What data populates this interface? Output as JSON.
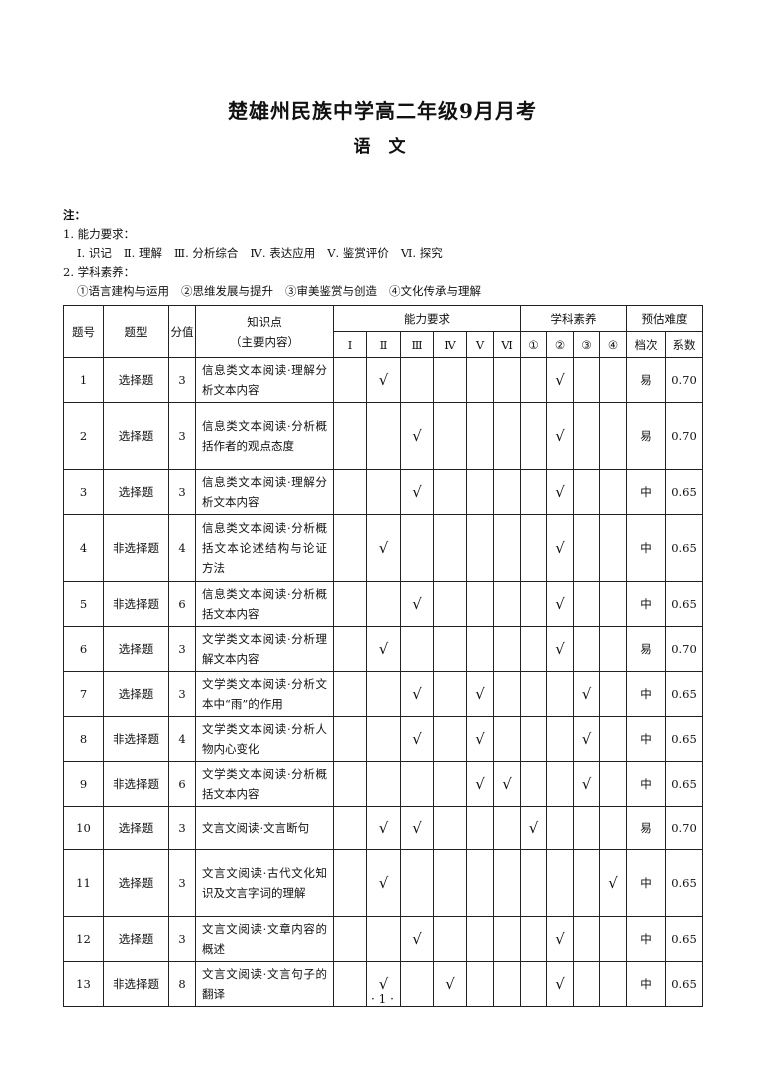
{
  "title": "楚雄州民族中学高二年级9月月考",
  "subject": "语 文",
  "notes": {
    "label": "注：",
    "ability_title": "1. 能力要求：",
    "ability_items": [
      "Ⅰ. 识记",
      "Ⅱ. 理解",
      "Ⅲ. 分析综合",
      "Ⅳ. 表达应用",
      "Ⅴ. 鉴赏评价",
      "Ⅵ. 探究"
    ],
    "literacy_title": "2. 学科素养：",
    "literacy_items": [
      "①语言建构与运用",
      "②思维发展与提升",
      "③审美鉴赏与创造",
      "④文化传承与理解"
    ]
  },
  "table": {
    "headers": {
      "num": "题号",
      "type": "题型",
      "score": "分值",
      "knowledge": "知识点",
      "knowledge_sub": "（主要内容）",
      "ability": "能力要求",
      "literacy": "学科素养",
      "difficulty": "预估难度",
      "level": "档次",
      "coef": "系数"
    },
    "ability_cols": [
      "Ⅰ",
      "Ⅱ",
      "Ⅲ",
      "Ⅳ",
      "Ⅴ",
      "Ⅵ"
    ],
    "literacy_cols": [
      "①",
      "②",
      "③",
      "④"
    ],
    "check_mark": "√",
    "rows": [
      {
        "num": "1",
        "type": "选择题",
        "score": "3",
        "knowledge": "信息类文本阅读·理解分析文本内容",
        "ability": [
          2
        ],
        "literacy": [
          2
        ],
        "level": "易",
        "coef": "0.70"
      },
      {
        "num": "2",
        "type": "选择题",
        "score": "3",
        "knowledge": "信息类文本阅读·分析概括作者的观点态度",
        "ability": [
          3
        ],
        "literacy": [
          2
        ],
        "level": "易",
        "coef": "0.70"
      },
      {
        "num": "3",
        "type": "选择题",
        "score": "3",
        "knowledge": "信息类文本阅读·理解分析文本内容",
        "ability": [
          3
        ],
        "literacy": [
          2
        ],
        "level": "中",
        "coef": "0.65"
      },
      {
        "num": "4",
        "type": "非选择题",
        "score": "4",
        "knowledge": "信息类文本阅读·分析概括文本论述结构与论证方法",
        "ability": [
          2
        ],
        "literacy": [
          2
        ],
        "level": "中",
        "coef": "0.65"
      },
      {
        "num": "5",
        "type": "非选择题",
        "score": "6",
        "knowledge": "信息类文本阅读·分析概括文本内容",
        "ability": [
          3
        ],
        "literacy": [
          2
        ],
        "level": "中",
        "coef": "0.65"
      },
      {
        "num": "6",
        "type": "选择题",
        "score": "3",
        "knowledge": "文学类文本阅读·分析理解文本内容",
        "ability": [
          2
        ],
        "literacy": [
          2
        ],
        "level": "易",
        "coef": "0.70"
      },
      {
        "num": "7",
        "type": "选择题",
        "score": "3",
        "knowledge": "文学类文本阅读·分析文本中“雨”的作用",
        "ability": [
          3,
          5
        ],
        "literacy": [
          3
        ],
        "level": "中",
        "coef": "0.65"
      },
      {
        "num": "8",
        "type": "非选择题",
        "score": "4",
        "knowledge": "文学类文本阅读·分析人物内心变化",
        "ability": [
          3,
          5
        ],
        "literacy": [
          3
        ],
        "level": "中",
        "coef": "0.65"
      },
      {
        "num": "9",
        "type": "非选择题",
        "score": "6",
        "knowledge": "文学类文本阅读·分析概括文本内容",
        "ability": [
          5,
          6
        ],
        "literacy": [
          3
        ],
        "level": "中",
        "coef": "0.65"
      },
      {
        "num": "10",
        "type": "选择题",
        "score": "3",
        "knowledge": "文言文阅读·文言断句",
        "ability": [
          2,
          3
        ],
        "literacy": [
          1
        ],
        "level": "易",
        "coef": "0.70"
      },
      {
        "num": "11",
        "type": "选择题",
        "score": "3",
        "knowledge": "文言文阅读·古代文化知识及文言字词的理解",
        "ability": [
          2
        ],
        "literacy": [
          4
        ],
        "level": "中",
        "coef": "0.65"
      },
      {
        "num": "12",
        "type": "选择题",
        "score": "3",
        "knowledge": "文言文阅读·文章内容的概述",
        "ability": [
          3
        ],
        "literacy": [
          2
        ],
        "level": "中",
        "coef": "0.65"
      },
      {
        "num": "13",
        "type": "非选择题",
        "score": "8",
        "knowledge": "文言文阅读·文言句子的翻译",
        "ability": [
          2,
          4
        ],
        "literacy": [
          2
        ],
        "level": "中",
        "coef": "0.65"
      }
    ]
  },
  "page_number": "· 1 ·"
}
